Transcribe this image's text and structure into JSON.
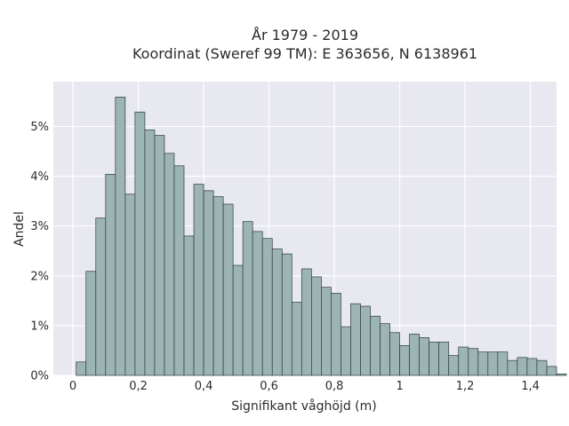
{
  "chart_data": {
    "type": "bar",
    "title": "År 1979 - 2019",
    "subtitle": "Koordinat (Sweref 99 TM): E 363656, N 6138961",
    "xlabel": "Signifikant våghöjd (m)",
    "ylabel": "Andel",
    "xlim": [
      -0.06,
      1.48
    ],
    "ylim": [
      0,
      0.059
    ],
    "grid": true,
    "bin_width": 0.03,
    "bin_start": 0.01,
    "x_ticks": [
      0,
      0.2,
      0.4,
      0.6,
      0.8,
      1.0,
      1.2,
      1.4
    ],
    "x_tick_labels": [
      "0",
      "0,2",
      "0,4",
      "0,6",
      "0,8",
      "1",
      "1,2",
      "1,4"
    ],
    "y_ticks": [
      0,
      0.01,
      0.02,
      0.03,
      0.04,
      0.05
    ],
    "y_tick_labels": [
      "0%",
      "1%",
      "2%",
      "3%",
      "4%",
      "5%"
    ],
    "bar_color": "#9db4b4",
    "bar_edge_color": "#2e3b3b",
    "background_color": "#e8e8f1",
    "values": [
      0.0027,
      0.0209,
      0.0316,
      0.0404,
      0.0559,
      0.0364,
      0.0529,
      0.0493,
      0.0482,
      0.0446,
      0.0421,
      0.028,
      0.0384,
      0.0371,
      0.0359,
      0.0344,
      0.0221,
      0.0309,
      0.0289,
      0.0275,
      0.0254,
      0.0244,
      0.0147,
      0.0214,
      0.0198,
      0.0177,
      0.0165,
      0.0098,
      0.0144,
      0.0139,
      0.0119,
      0.0104,
      0.0086,
      0.006,
      0.0083,
      0.0076,
      0.0067,
      0.0067,
      0.004,
      0.0057,
      0.0054,
      0.0047,
      0.0047,
      0.0047,
      0.003,
      0.0036,
      0.0034,
      0.003,
      0.0018,
      0.0003
    ]
  }
}
